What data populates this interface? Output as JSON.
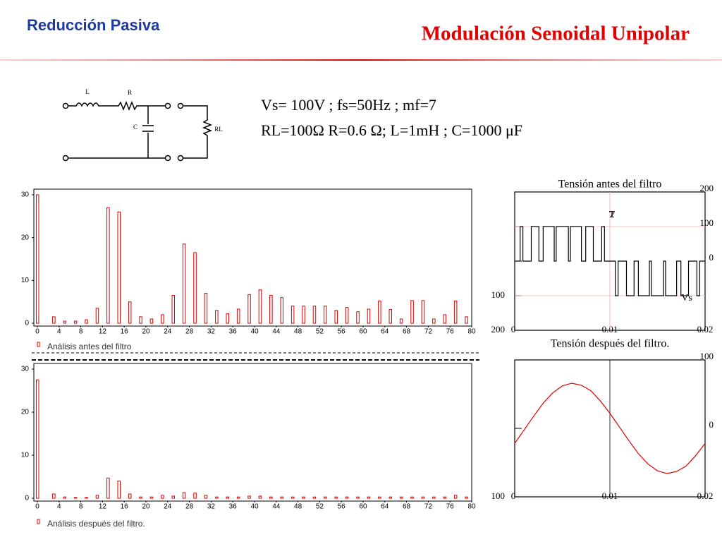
{
  "header": {
    "left_title": "Reducción Pasiva",
    "right_title": "Modulación Senoidal Unipolar"
  },
  "circuit": {
    "labels": [
      "L",
      "R",
      "C",
      "RL"
    ]
  },
  "parameters": [
    "Vs= 100V ;  fs=50Hz ;  mf=7",
    "RL=100Ω  R=0.6 Ω;  L=1mH ;  C=1000 μF"
  ],
  "chart_data": [
    {
      "type": "bar",
      "x": [
        0,
        3,
        5,
        7,
        9,
        11,
        13,
        15,
        17,
        19,
        21,
        23,
        25,
        27,
        29,
        31,
        33,
        35,
        37,
        39,
        41,
        43,
        45,
        47,
        49,
        51,
        53,
        55,
        57,
        59,
        61,
        63,
        65,
        67,
        69,
        71,
        73,
        75,
        77,
        79
      ],
      "series": [
        {
          "name": "Análisis antes del filtro",
          "color": "#e00000",
          "values": [
            30,
            1.5,
            0.5,
            0.5,
            0.8,
            3.5,
            27,
            26,
            5,
            1.5,
            1,
            2,
            6.5,
            18.5,
            16.5,
            7,
            3,
            2.2,
            3.3,
            6.7,
            7.8,
            6.5,
            6,
            4,
            4,
            4,
            4,
            3,
            3.7,
            2.7,
            3.3,
            5.2,
            3.2,
            1,
            5.3,
            5.3,
            1,
            2,
            5.2,
            1.5
          ]
        }
      ],
      "xlim": [
        0,
        80
      ],
      "xticks": [
        0,
        4,
        8,
        12,
        16,
        20,
        24,
        28,
        32,
        36,
        40,
        44,
        48,
        52,
        56,
        60,
        64,
        68,
        72,
        76,
        80
      ],
      "ylim": [
        0,
        30
      ],
      "yticks": [
        0,
        10,
        20,
        30
      ]
    },
    {
      "type": "bar",
      "x": [
        0,
        3,
        5,
        7,
        9,
        11,
        13,
        15,
        17,
        19,
        21,
        23,
        25,
        27,
        29,
        31,
        33,
        35,
        37,
        39,
        41,
        43,
        45,
        47,
        49,
        51,
        53,
        55,
        57,
        59,
        61,
        63,
        65,
        67,
        69,
        71,
        73,
        75,
        77,
        79
      ],
      "series": [
        {
          "name": "Análisis después del filtro.",
          "color": "#e00000",
          "values": [
            27.5,
            1,
            0.3,
            0.2,
            0.2,
            0.7,
            4.7,
            4,
            1,
            0.3,
            0.3,
            0.7,
            0.5,
            1.3,
            1.2,
            0.7,
            0.3,
            0.3,
            0.3,
            0.5,
            0.5,
            0.3,
            0.3,
            0.3,
            0.3,
            0.3,
            0.3,
            0.3,
            0.3,
            0.3,
            0.3,
            0.3,
            0.3,
            0.3,
            0.3,
            0.3,
            0.3,
            0.3,
            0.7,
            0.3
          ]
        }
      ],
      "xlim": [
        0,
        80
      ],
      "xticks": [
        0,
        4,
        8,
        12,
        16,
        20,
        24,
        28,
        32,
        36,
        40,
        44,
        48,
        52,
        56,
        60,
        64,
        68,
        72,
        76,
        80
      ],
      "ylim": [
        0,
        30
      ],
      "yticks": [
        0,
        10,
        20,
        30
      ]
    },
    {
      "type": "line",
      "title": "Tensión antes del filtro",
      "x": [
        0,
        0.00057,
        0.00057,
        0.00086,
        0.00086,
        0.00174,
        0.00174,
        0.00254,
        0.00254,
        0.00299,
        0.00299,
        0.00415,
        0.00415,
        0.00436,
        0.00436,
        0.00564,
        0.00564,
        0.00585,
        0.00585,
        0.00701,
        0.00701,
        0.00746,
        0.00746,
        0.00826,
        0.00826,
        0.00914,
        0.00914,
        0.00943,
        0.00943,
        0.01057,
        0.01057,
        0.01086,
        0.01086,
        0.01174,
        0.01174,
        0.01254,
        0.01254,
        0.01299,
        0.01299,
        0.01415,
        0.01415,
        0.01436,
        0.01436,
        0.01564,
        0.01564,
        0.01585,
        0.01585,
        0.01701,
        0.01701,
        0.01746,
        0.01746,
        0.01826,
        0.01826,
        0.01914,
        0.01914,
        0.01943,
        0.01943,
        0.02
      ],
      "series": [
        {
          "color": "#000000",
          "values": [
            0,
            0,
            100,
            100,
            0,
            0,
            100,
            100,
            0,
            0,
            100,
            100,
            0,
            0,
            100,
            100,
            0,
            0,
            100,
            100,
            0,
            0,
            100,
            100,
            0,
            0,
            100,
            100,
            0,
            0,
            -100,
            -100,
            0,
            0,
            -100,
            -100,
            0,
            0,
            -100,
            -100,
            0,
            0,
            -100,
            -100,
            0,
            0,
            -100,
            -100,
            0,
            0,
            -100,
            -100,
            0,
            0,
            -100,
            -100,
            0,
            0
          ]
        }
      ],
      "xlim": [
        0,
        0.02
      ],
      "xticks": [
        0,
        0.01,
        0.02
      ],
      "ylim": [
        -200,
        200
      ],
      "yticks": [
        {
          "value": -200,
          "label": "200"
        },
        {
          "value": -100,
          "label": "100"
        },
        0,
        100,
        200
      ],
      "annotations": [
        "T",
        "2",
        "Vs"
      ]
    },
    {
      "type": "line",
      "title": "Tensión después del filtro.",
      "x": [
        0,
        0.001,
        0.002,
        0.003,
        0.004,
        0.005,
        0.006,
        0.007,
        0.008,
        0.009,
        0.01,
        0.011,
        0.012,
        0.013,
        0.014,
        0.015,
        0.016,
        0.017,
        0.018,
        0.019,
        0.02
      ],
      "series": [
        {
          "color": "#e00000",
          "values": [
            -22,
            -2,
            18,
            37,
            52,
            62,
            66,
            63,
            55,
            40,
            22,
            2,
            -18,
            -37,
            -52,
            -62,
            -66,
            -63,
            -55,
            -40,
            -22
          ]
        }
      ],
      "xlim": [
        0,
        0.02
      ],
      "xticks": [
        0,
        0.01,
        0.02
      ],
      "ylim": [
        -100,
        100
      ],
      "yticks": [
        {
          "value": -100,
          "label": "100"
        },
        0,
        100
      ]
    }
  ]
}
